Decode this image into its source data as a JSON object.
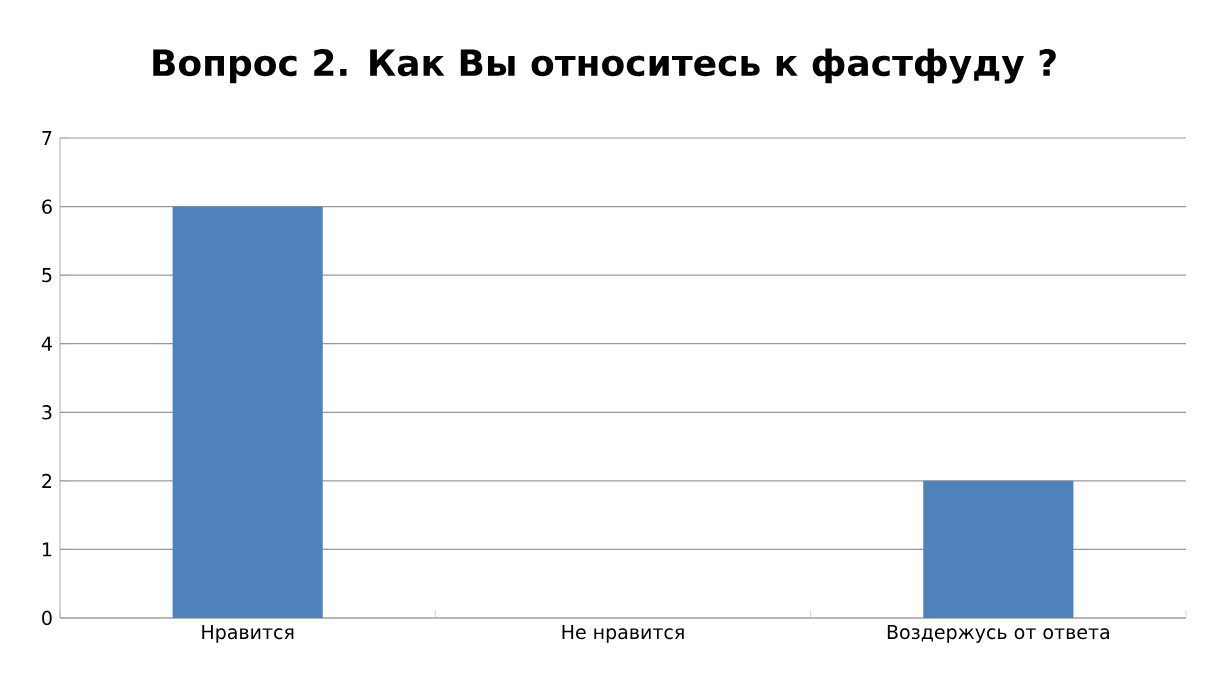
{
  "chart_data": {
    "type": "bar",
    "title": "Вопрос 2. Как Вы относитесь к фастфуду ?",
    "categories": [
      "Нравится",
      "Не нравится",
      "Воздержусь от ответа"
    ],
    "values": [
      6,
      0,
      2
    ],
    "color": "#4f81bd",
    "ylim": [
      0,
      7
    ],
    "yticks": [
      0,
      1,
      2,
      3,
      4,
      5,
      6,
      7
    ],
    "grid": "y"
  }
}
